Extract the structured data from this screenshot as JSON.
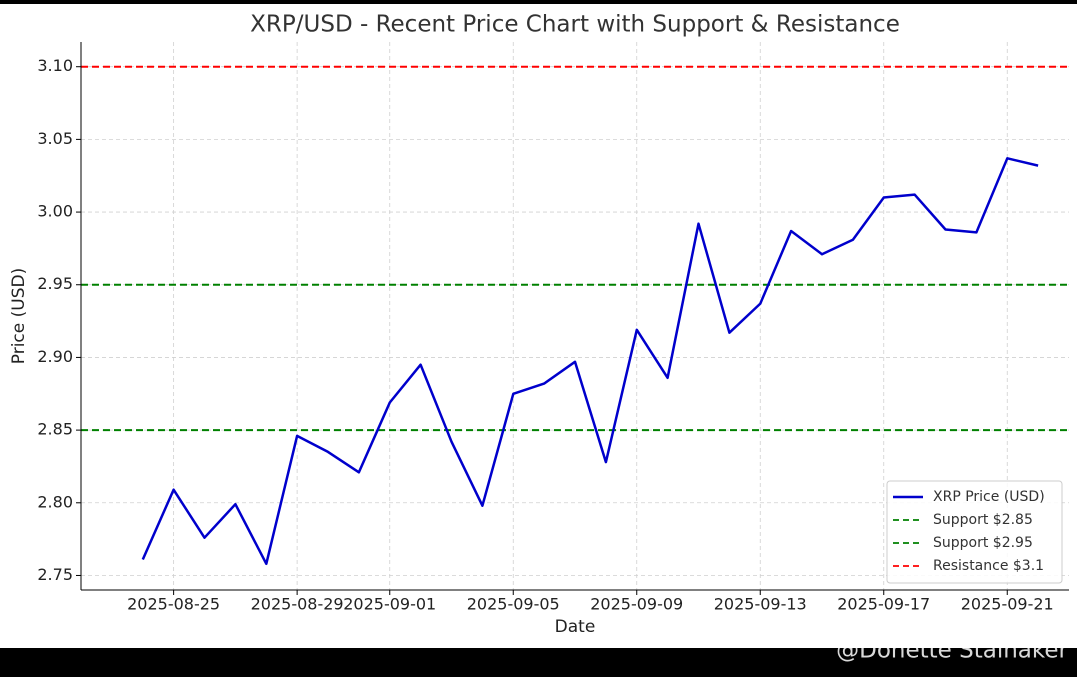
{
  "chart_data": {
    "type": "line",
    "title": "XRP/USD - Recent Price Chart with Support & Resistance",
    "xlabel": "Date",
    "ylabel": "Price (USD)",
    "x": [
      "2025-08-24",
      "2025-08-25",
      "2025-08-26",
      "2025-08-27",
      "2025-08-28",
      "2025-08-29",
      "2025-08-30",
      "2025-08-31",
      "2025-09-01",
      "2025-09-02",
      "2025-09-03",
      "2025-09-04",
      "2025-09-05",
      "2025-09-06",
      "2025-09-07",
      "2025-09-08",
      "2025-09-09",
      "2025-09-10",
      "2025-09-11",
      "2025-09-12",
      "2025-09-13",
      "2025-09-14",
      "2025-09-15",
      "2025-09-16",
      "2025-09-17",
      "2025-09-18",
      "2025-09-19",
      "2025-09-20",
      "2025-09-21",
      "2025-09-22"
    ],
    "series": [
      {
        "name": "XRP Price (USD)",
        "color": "#0000cc",
        "values": [
          2.761,
          2.809,
          2.776,
          2.799,
          2.758,
          2.846,
          2.835,
          2.821,
          2.869,
          2.895,
          2.842,
          2.798,
          2.875,
          2.882,
          2.897,
          2.828,
          2.919,
          2.886,
          2.992,
          2.917,
          2.937,
          2.987,
          2.971,
          2.981,
          3.01,
          3.012,
          2.988,
          2.986,
          3.037,
          3.032
        ]
      }
    ],
    "hlines": [
      {
        "name": "Support $2.85",
        "value": 2.85,
        "color": "#008000"
      },
      {
        "name": "Support $2.95",
        "value": 2.95,
        "color": "#008000"
      },
      {
        "name": "Resistance $3.1",
        "value": 3.1,
        "color": "#ff0000"
      }
    ],
    "xlim": [
      "2025-08-22",
      "2025-09-23"
    ],
    "xticks": [
      "2025-08-25",
      "2025-08-29",
      "2025-09-01",
      "2025-09-05",
      "2025-09-09",
      "2025-09-13",
      "2025-09-17",
      "2025-09-21"
    ],
    "ylim": [
      2.74,
      3.117
    ],
    "yticks": [
      {
        "value": 2.75,
        "label": "2.75"
      },
      {
        "value": 2.8,
        "label": "2.80"
      },
      {
        "value": 2.85,
        "label": "2.85"
      },
      {
        "value": 2.9,
        "label": "2.90"
      },
      {
        "value": 2.95,
        "label": "2.95"
      },
      {
        "value": 3.0,
        "label": "3.00"
      },
      {
        "value": 3.05,
        "label": "3.05"
      },
      {
        "value": 3.1,
        "label": "3.10"
      }
    ],
    "grid": true,
    "legend": "lower right",
    "watermark": "@Donette Stainaker"
  }
}
